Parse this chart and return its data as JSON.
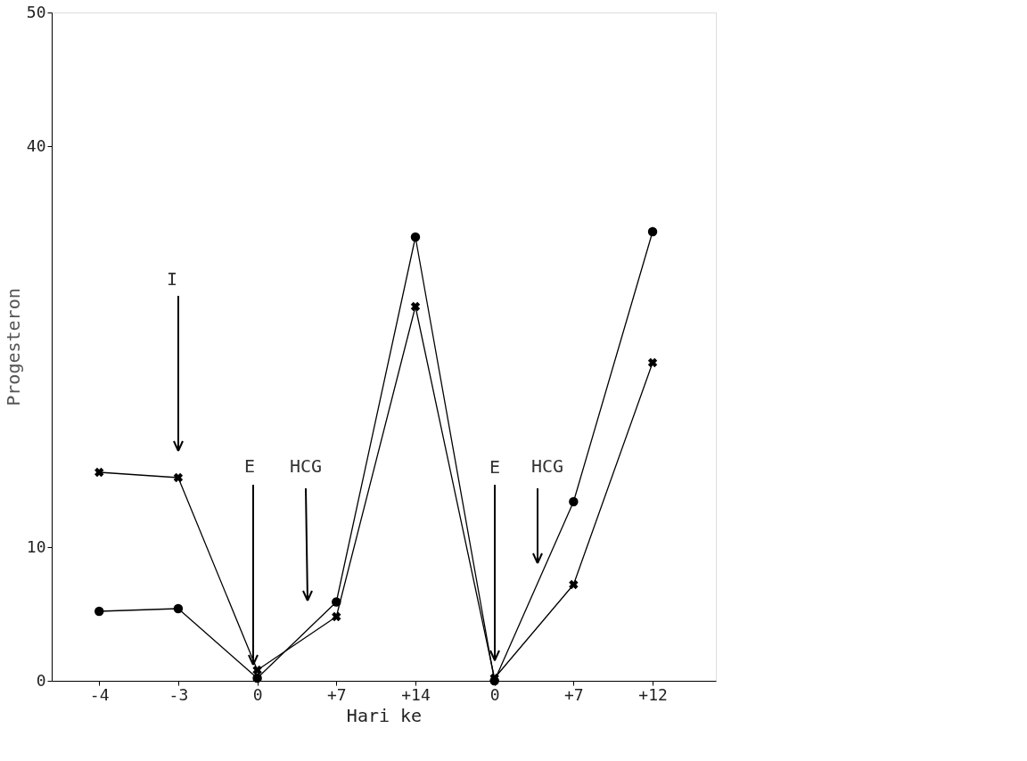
{
  "chart_data": {
    "type": "line",
    "xlabel": "Hari ke",
    "ylabel": "Progesteron",
    "categories": [
      "-4",
      "-3",
      "0",
      "+7",
      "+14",
      "0",
      "+7",
      "+12"
    ],
    "series": [
      {
        "color": "#000000",
        "marker": "circle",
        "values": [
          5.2,
          5.4,
          0.2,
          5.9,
          33.2,
          0.0,
          13.4,
          33.6
        ]
      },
      {
        "color": "#000000",
        "marker": "cross",
        "values": [
          15.6,
          15.2,
          0.8,
          4.8,
          28.0,
          0.2,
          7.2,
          23.8
        ]
      }
    ],
    "ylim": [
      0,
      50
    ],
    "yticks": [
      0,
      10,
      40,
      50
    ],
    "annotations": [
      "I",
      {
        "text": "E",
        "y": 1.2
      },
      "HCG",
      {
        "text": "E",
        "y": 1.5
      },
      "HCG"
    ],
    "grid": false,
    "line_style": "solid"
  }
}
